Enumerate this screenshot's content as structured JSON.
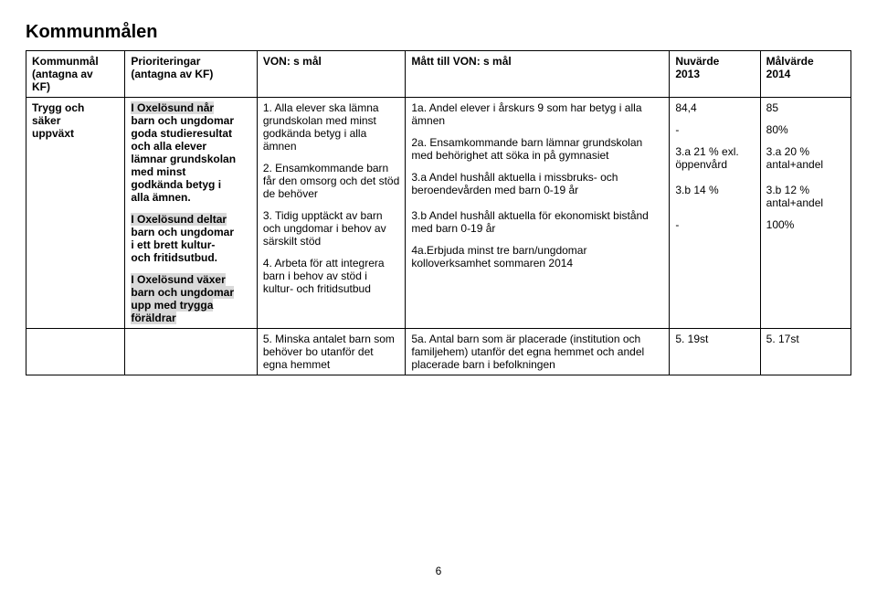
{
  "title": "Kommunmålen",
  "headers": {
    "c1a": "Kommunmål",
    "c1b": "(antagna av",
    "c1c": "KF)",
    "c2a": "Prioriteringar",
    "c2b": "(antagna av KF)",
    "c3": "VON: s mål",
    "c4": "Mått till VON: s mål",
    "c5a": "Nuvärde",
    "c5b": "2013",
    "c6a": "Målvärde",
    "c6b": "2014"
  },
  "row": {
    "c1a": "Trygg och",
    "c1b": "säker",
    "c1c": "uppväxt",
    "c2p1a": "I Oxelösund når",
    "c2p1b": "barn och ungdomar",
    "c2p1c": "goda studieresultat",
    "c2p1d": "och alla elever",
    "c2p1e": "lämnar grundskolan",
    "c2p1f": "med minst",
    "c2p1g": "godkända betyg i",
    "c2p1h": "alla ämnen.",
    "c2p2a": "I Oxelösund deltar",
    "c2p2b": "barn och ungdomar",
    "c2p2c": "i ett brett kultur-",
    "c2p2d": "och fritidsutbud.",
    "c2p3a": "I Oxelösund växer",
    "c2p3b": "barn och ungdomar",
    "c2p3c": "upp med trygga",
    "c2p3d": "föräldrar",
    "c3p1": "1. Alla elever ska lämna grundskolan med minst godkända betyg i alla ämnen",
    "c3p2": "2. Ensamkommande barn får den omsorg och det stöd de behöver",
    "c3p3": "3. Tidig upptäckt av barn och ungdomar i behov av särskilt stöd",
    "c3p4": "4. Arbeta för att integrera barn i behov av stöd i kultur- och fritidsutbud",
    "c4p1": "1a. Andel elever i årskurs 9 som har betyg i alla ämnen",
    "c4p2": "2a. Ensamkommande barn lämnar grundskolan med behörighet att söka in på gymnasiet",
    "c4p3a": "3.a Andel hushåll aktuella i missbruks- och beroendevården med barn 0-19 år",
    "c4p3b": "3.b Andel hushåll aktuella för ekonomiskt bistånd med barn 0-19 år",
    "c4p4": "4a.Erbjuda minst tre barn/ungdomar kolloverksamhet sommaren 2014",
    "c5p1": "84,4",
    "c5p2": "-",
    "c5p3a1": "3.a 21 % exl.",
    "c5p3a2": "öppenvård",
    "c5p3b": "3.b 14 %",
    "c5p4": "-",
    "c6p1": "85",
    "c6p2": "80%",
    "c6p3a1": "3.a 20 %",
    "c6p3a2": "antal+andel",
    "c6p3b1": "3.b 12 %",
    "c6p3b2": "antal+andel",
    "c6p4": "100%"
  },
  "row2": {
    "c3": "5. Minska antalet barn som behöver bo utanför det egna hemmet",
    "c4": "5a. Antal barn som är placerade (institution och familjehem) utanför det egna hemmet och andel placerade barn i befolkningen",
    "c5": "5. 19st",
    "c6": "5. 17st"
  },
  "pageNumber": "6"
}
